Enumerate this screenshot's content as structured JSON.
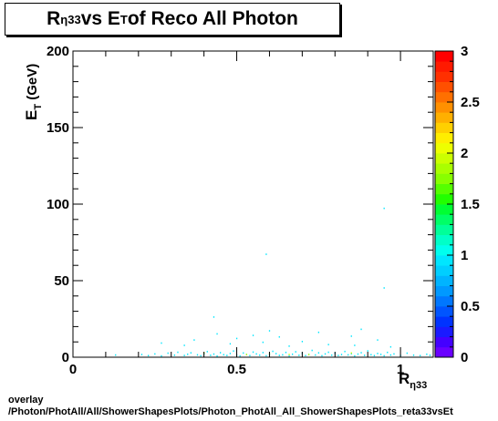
{
  "chart_data": {
    "type": "heatmap",
    "title": {
      "r": "R",
      "r_sub": "η33",
      "vs": " vs E",
      "e_sub": "T",
      "rest": " of Reco All Photon"
    },
    "xlabel": {
      "main": "R",
      "sub": "η33"
    },
    "ylabel": {
      "main": "E",
      "sub": "T",
      "unit": " (GeV)"
    },
    "xlim": [
      0,
      1.1
    ],
    "ylim": [
      0,
      200
    ],
    "x_ticks": [
      0,
      0.5,
      1
    ],
    "x_tick_labels": [
      "0",
      "0.5",
      "1"
    ],
    "y_ticks": [
      0,
      50,
      100,
      150,
      200
    ],
    "y_tick_labels": [
      "0",
      "50",
      "100",
      "150",
      "200"
    ],
    "colorbar": {
      "min": 0,
      "max": 3,
      "ticks": [
        0,
        0.5,
        1,
        1.5,
        2,
        2.5,
        3
      ],
      "tick_labels": [
        "0",
        "0.5",
        "1",
        "1.5",
        "2",
        "2.5",
        "3"
      ]
    },
    "points": [
      [
        0.13,
        1.2,
        1
      ],
      [
        0.21,
        1.5,
        1
      ],
      [
        0.23,
        0.8,
        1
      ],
      [
        0.25,
        1.9,
        1
      ],
      [
        0.27,
        0.6,
        1
      ],
      [
        0.29,
        2.4,
        1
      ],
      [
        0.31,
        1.1,
        1
      ],
      [
        0.32,
        3.0,
        1
      ],
      [
        0.34,
        0.9,
        1
      ],
      [
        0.35,
        1.7,
        1
      ],
      [
        0.36,
        2.6,
        1
      ],
      [
        0.38,
        1.3,
        1
      ],
      [
        0.39,
        0.7,
        1
      ],
      [
        0.4,
        2.0,
        1
      ],
      [
        0.41,
        3.4,
        1
      ],
      [
        0.42,
        1.0,
        1
      ],
      [
        0.43,
        1.8,
        1
      ],
      [
        0.44,
        0.5,
        1
      ],
      [
        0.45,
        2.7,
        1
      ],
      [
        0.46,
        1.4,
        1
      ],
      [
        0.47,
        0.9,
        1
      ],
      [
        0.48,
        2.2,
        1
      ],
      [
        0.49,
        3.8,
        1
      ],
      [
        0.5,
        1.2,
        1
      ],
      [
        0.51,
        0.6,
        1
      ],
      [
        0.52,
        2.5,
        1
      ],
      [
        0.53,
        1.6,
        1
      ],
      [
        0.54,
        0.8,
        1
      ],
      [
        0.55,
        3.1,
        1
      ],
      [
        0.56,
        1.9,
        1
      ],
      [
        0.57,
        1.1,
        1
      ],
      [
        0.58,
        2.8,
        1
      ],
      [
        0.59,
        0.7,
        1
      ],
      [
        0.6,
        1.5,
        1
      ],
      [
        0.61,
        3.6,
        1
      ],
      [
        0.62,
        2.1,
        1
      ],
      [
        0.63,
        0.9,
        1
      ],
      [
        0.64,
        1.3,
        1
      ],
      [
        0.65,
        2.9,
        1
      ],
      [
        0.66,
        0.6,
        1
      ],
      [
        0.67,
        1.7,
        1
      ],
      [
        0.68,
        3.3,
        1
      ],
      [
        0.69,
        1.0,
        1
      ],
      [
        0.7,
        2.3,
        1
      ],
      [
        0.71,
        0.8,
        1
      ],
      [
        0.72,
        1.6,
        1
      ],
      [
        0.73,
        4.2,
        1
      ],
      [
        0.74,
        1.2,
        1
      ],
      [
        0.75,
        2.6,
        1
      ],
      [
        0.76,
        0.7,
        1
      ],
      [
        0.77,
        1.9,
        1
      ],
      [
        0.78,
        3.0,
        1
      ],
      [
        0.79,
        1.1,
        1
      ],
      [
        0.8,
        2.4,
        1
      ],
      [
        0.81,
        0.9,
        1
      ],
      [
        0.82,
        1.5,
        1
      ],
      [
        0.83,
        3.5,
        1
      ],
      [
        0.84,
        1.3,
        1
      ],
      [
        0.85,
        2.0,
        1
      ],
      [
        0.86,
        0.6,
        1
      ],
      [
        0.87,
        1.8,
        1
      ],
      [
        0.88,
        2.7,
        1
      ],
      [
        0.89,
        1.0,
        1
      ],
      [
        0.9,
        3.9,
        1
      ],
      [
        0.91,
        1.4,
        1
      ],
      [
        0.92,
        0.8,
        1
      ],
      [
        0.93,
        2.2,
        1
      ],
      [
        0.94,
        1.6,
        1
      ],
      [
        0.95,
        0.7,
        1
      ],
      [
        0.96,
        2.9,
        1
      ],
      [
        0.97,
        1.2,
        1
      ],
      [
        0.98,
        1.9,
        1
      ],
      [
        1.0,
        0.9,
        1
      ],
      [
        1.02,
        2.4,
        1
      ],
      [
        1.04,
        1.1,
        1
      ],
      [
        1.06,
        0.8,
        1
      ],
      [
        1.08,
        1.7,
        1
      ],
      [
        1.09,
        1.0,
        1
      ],
      [
        0.4,
        2.5,
        2
      ],
      [
        0.53,
        1.5,
        2
      ],
      [
        0.6,
        2.0,
        2
      ],
      [
        0.72,
        1.5,
        2
      ],
      [
        0.85,
        2.5,
        2
      ],
      [
        0.66,
        1.5,
        2
      ],
      [
        0.27,
        9.0,
        1
      ],
      [
        0.37,
        11.0,
        1
      ],
      [
        0.48,
        8.5,
        1
      ],
      [
        0.5,
        12.0,
        1
      ],
      [
        0.58,
        9.5,
        1
      ],
      [
        0.66,
        7.0,
        1
      ],
      [
        0.7,
        10.0,
        1
      ],
      [
        0.78,
        8.0,
        1
      ],
      [
        0.86,
        7.5,
        1
      ],
      [
        0.93,
        11.0,
        1
      ],
      [
        0.55,
        14.0,
        1
      ],
      [
        0.44,
        15.0,
        1
      ],
      [
        0.63,
        13.0,
        1
      ],
      [
        0.85,
        13.5,
        1
      ],
      [
        0.97,
        6.5,
        1
      ],
      [
        0.34,
        7.5,
        1
      ],
      [
        0.6,
        17.0,
        1
      ],
      [
        0.75,
        16.0,
        1
      ],
      [
        0.88,
        18.0,
        1
      ],
      [
        0.43,
        26.0,
        1
      ],
      [
        0.95,
        45.0,
        1
      ],
      [
        0.59,
        67.0,
        1
      ],
      [
        0.95,
        97.0,
        1
      ]
    ]
  },
  "footer": {
    "line1": "overlay",
    "line2": "/Photon/PhotAll/All/ShowerShapesPlots/Photon_PhotAll_All_ShowerShapesPlots_reta33vsEt"
  }
}
